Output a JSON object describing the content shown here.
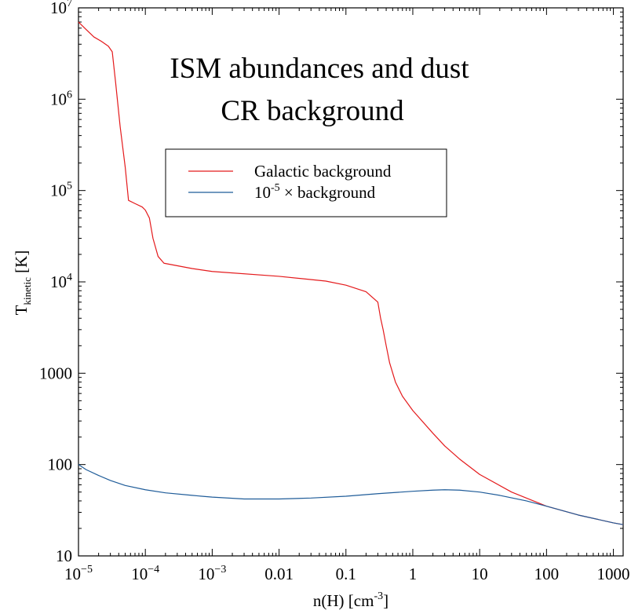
{
  "chart_data": {
    "type": "line",
    "title_lines": [
      "ISM abundances and dust",
      "CR background"
    ],
    "xlabel": {
      "base": "n(H) [cm",
      "sup": "-3",
      "tail": "]"
    },
    "ylabel": {
      "base": "T",
      "sub": "kinetic",
      "tail": " [K]"
    },
    "x_scale": "log",
    "y_scale": "log",
    "xlim": [
      1e-05,
      1400
    ],
    "ylim": [
      10,
      10000000.0
    ],
    "grid": false,
    "legend_position": "upper-middle",
    "x_ticks": [
      {
        "value": 1e-05,
        "base": "10",
        "sup": "−5"
      },
      {
        "value": 0.0001,
        "base": "10",
        "sup": "−4"
      },
      {
        "value": 0.001,
        "base": "10",
        "sup": "−3"
      },
      {
        "value": 0.01,
        "base": "0.01",
        "sup": ""
      },
      {
        "value": 0.1,
        "base": "0.1",
        "sup": ""
      },
      {
        "value": 1,
        "base": "1",
        "sup": ""
      },
      {
        "value": 10,
        "base": "10",
        "sup": ""
      },
      {
        "value": 100,
        "base": "100",
        "sup": ""
      },
      {
        "value": 1000,
        "base": "1000",
        "sup": ""
      }
    ],
    "y_ticks": [
      {
        "value": 10,
        "base": "10",
        "sup": ""
      },
      {
        "value": 100,
        "base": "100",
        "sup": ""
      },
      {
        "value": 1000,
        "base": "1000",
        "sup": ""
      },
      {
        "value": 10000,
        "base": "10",
        "sup": "4"
      },
      {
        "value": 100000,
        "base": "10",
        "sup": "5"
      },
      {
        "value": 1000000,
        "base": "10",
        "sup": "6"
      },
      {
        "value": 10000000,
        "base": "10",
        "sup": "7"
      }
    ],
    "series": [
      {
        "name": "Galactic background",
        "color": "#e41a1c",
        "points": [
          [
            1e-05,
            7000000
          ],
          [
            1.3e-05,
            5800000
          ],
          [
            1.7e-05,
            4800000
          ],
          [
            2.2e-05,
            4300000
          ],
          [
            2.8e-05,
            3800000
          ],
          [
            3.2e-05,
            3300000
          ],
          [
            3.6e-05,
            1500000
          ],
          [
            4.2e-05,
            500000
          ],
          [
            5e-05,
            180000
          ],
          [
            5.6e-05,
            78000
          ],
          [
            7e-05,
            72000
          ],
          [
            9e-05,
            66000
          ],
          [
            0.0001,
            61000
          ],
          [
            0.000115,
            50000
          ],
          [
            0.00013,
            30000
          ],
          [
            0.000155,
            19000
          ],
          [
            0.00019,
            16000
          ],
          [
            0.0005,
            14000
          ],
          [
            0.001,
            13000
          ],
          [
            0.01,
            11500
          ],
          [
            0.05,
            10200
          ],
          [
            0.1,
            9200
          ],
          [
            0.2,
            7800
          ],
          [
            0.3,
            6000
          ],
          [
            0.33,
            4000
          ],
          [
            0.36,
            3000
          ],
          [
            0.4,
            2000
          ],
          [
            0.45,
            1300
          ],
          [
            0.55,
            800
          ],
          [
            0.7,
            560
          ],
          [
            1,
            390
          ],
          [
            2,
            220
          ],
          [
            3,
            160
          ],
          [
            5,
            115
          ],
          [
            10,
            78
          ],
          [
            30,
            50
          ],
          [
            100,
            35
          ],
          [
            300,
            28
          ],
          [
            1000,
            23
          ],
          [
            1400,
            22
          ]
        ]
      },
      {
        "name": "10",
        "name_sup": "-5",
        "name_tail": " × background",
        "color": "#1f5c99",
        "points": [
          [
            1e-05,
            100
          ],
          [
            1.3e-05,
            88
          ],
          [
            2e-05,
            76
          ],
          [
            3e-05,
            67
          ],
          [
            5e-05,
            59
          ],
          [
            0.0001,
            53
          ],
          [
            0.0002,
            49
          ],
          [
            0.0005,
            46
          ],
          [
            0.001,
            44
          ],
          [
            0.003,
            42
          ],
          [
            0.01,
            42
          ],
          [
            0.03,
            43
          ],
          [
            0.1,
            45
          ],
          [
            0.3,
            48
          ],
          [
            1,
            51
          ],
          [
            2,
            52.5
          ],
          [
            3,
            53
          ],
          [
            5,
            52.5
          ],
          [
            10,
            50
          ],
          [
            20,
            46
          ],
          [
            50,
            40
          ],
          [
            100,
            35
          ],
          [
            300,
            28
          ],
          [
            1000,
            23
          ],
          [
            1400,
            22
          ]
        ]
      }
    ]
  }
}
